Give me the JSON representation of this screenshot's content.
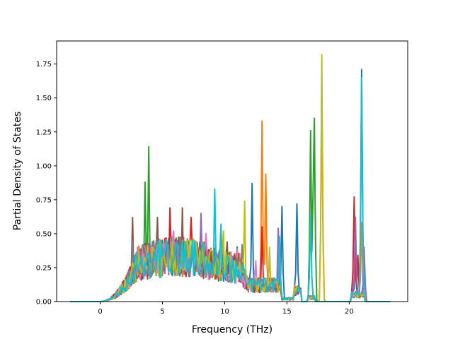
{
  "chart_data": {
    "type": "line",
    "title": "",
    "xlabel": "Frequency (THz)",
    "ylabel": "Partial Density of States",
    "xlim": [
      -3.5,
      24.7
    ],
    "ylim": [
      0,
      1.92
    ],
    "xticks": [
      0,
      5,
      10,
      15,
      20
    ],
    "yticks": [
      0.0,
      0.25,
      0.5,
      0.75,
      1.0,
      1.25,
      1.5,
      1.75
    ],
    "xtick_labels": [
      "0",
      "5",
      "10",
      "15",
      "20"
    ],
    "ytick_labels": [
      "0.00",
      "0.25",
      "0.50",
      "0.75",
      "1.00",
      "1.25",
      "1.50",
      "1.75"
    ],
    "grid": false,
    "legend": "none",
    "x_range": [
      -2.4,
      23.3
    ],
    "x_step": 0.1,
    "colors": [
      "#1f77b4",
      "#ff7f0e",
      "#2ca02c",
      "#d62728",
      "#9467bd",
      "#8c564b",
      "#e377c2",
      "#7f7f7f",
      "#bcbd22",
      "#17becf"
    ],
    "series": [
      {
        "color": "#1f77b4",
        "peaks": [
          [
            12.2,
            0.87
          ],
          [
            14.6,
            0.7
          ],
          [
            15.8,
            0.72
          ],
          [
            21.0,
            1.71
          ],
          [
            20.5,
            0.33
          ]
        ]
      },
      {
        "color": "#ff7f0e",
        "peaks": [
          [
            3.7,
            0.5
          ],
          [
            13.0,
            1.33
          ],
          [
            13.3,
            0.94
          ],
          [
            17.8,
            1.58
          ],
          [
            21.0,
            0.58
          ]
        ]
      },
      {
        "color": "#2ca02c",
        "peaks": [
          [
            3.9,
            1.14
          ],
          [
            3.6,
            0.88
          ],
          [
            16.9,
            1.26
          ],
          [
            17.2,
            1.35
          ],
          [
            17.1,
            0.82
          ]
        ]
      },
      {
        "color": "#d62728",
        "peaks": [
          [
            5.6,
            0.69
          ],
          [
            20.4,
            0.77
          ],
          [
            20.7,
            0.34
          ],
          [
            13.0,
            0.55
          ],
          [
            7.3,
            0.62
          ]
        ]
      },
      {
        "color": "#9467bd",
        "peaks": [
          [
            8.1,
            0.65
          ],
          [
            14.3,
            0.54
          ],
          [
            21.2,
            0.4
          ],
          [
            20.5,
            0.62
          ],
          [
            3.0,
            0.32
          ]
        ]
      },
      {
        "color": "#8c564b",
        "peaks": [
          [
            2.6,
            0.62
          ],
          [
            4.6,
            0.62
          ],
          [
            6.6,
            0.69
          ],
          [
            10.2,
            0.44
          ],
          [
            3.3,
            0.35
          ]
        ]
      },
      {
        "color": "#e377c2",
        "peaks": [
          [
            5.9,
            0.52
          ],
          [
            8.5,
            0.5
          ],
          [
            11.0,
            0.33
          ],
          [
            3.4,
            0.38
          ],
          [
            12.5,
            0.3
          ]
        ]
      },
      {
        "color": "#7f7f7f",
        "peaks": [
          [
            2.6,
            0.45
          ],
          [
            7.6,
            0.41
          ],
          [
            9.6,
            0.38
          ],
          [
            11.4,
            0.42
          ],
          [
            4.8,
            0.3
          ]
        ]
      },
      {
        "color": "#bcbd22",
        "peaks": [
          [
            11.6,
            0.74
          ],
          [
            17.8,
            1.82
          ],
          [
            9.9,
            0.52
          ],
          [
            13.6,
            0.4
          ],
          [
            5.5,
            0.28
          ]
        ]
      },
      {
        "color": "#17becf",
        "peaks": [
          [
            9.2,
            0.83
          ],
          [
            21.0,
            1.65
          ],
          [
            16.9,
            0.64
          ],
          [
            14.4,
            0.48
          ],
          [
            9.7,
            0.57
          ]
        ]
      }
    ]
  }
}
